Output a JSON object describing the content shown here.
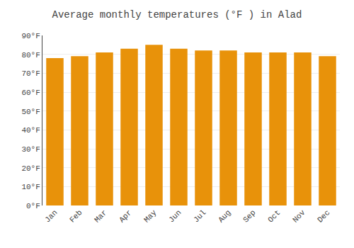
{
  "chart_data": {
    "type": "bar",
    "title": "Average monthly temperatures (°F ) in Alad",
    "categories": [
      "Jan",
      "Feb",
      "Mar",
      "Apr",
      "May",
      "Jun",
      "Jul",
      "Aug",
      "Sep",
      "Oct",
      "Nov",
      "Dec"
    ],
    "values": [
      78,
      79,
      81,
      83,
      85,
      83,
      82,
      82,
      81,
      81,
      81,
      79
    ],
    "color": "#E8920A",
    "ylim": [
      0,
      90
    ],
    "yticks": [
      {
        "value": 0,
        "label": "0°F"
      },
      {
        "value": 10,
        "label": "10°F"
      },
      {
        "value": 20,
        "label": "20°F"
      },
      {
        "value": 30,
        "label": "30°F"
      },
      {
        "value": 40,
        "label": "40°F"
      },
      {
        "value": 50,
        "label": "50°F"
      },
      {
        "value": 60,
        "label": "60°F"
      },
      {
        "value": 70,
        "label": "70°F"
      },
      {
        "value": 80,
        "label": "80°F"
      },
      {
        "value": 90,
        "label": "90°F"
      }
    ],
    "grid": true
  }
}
